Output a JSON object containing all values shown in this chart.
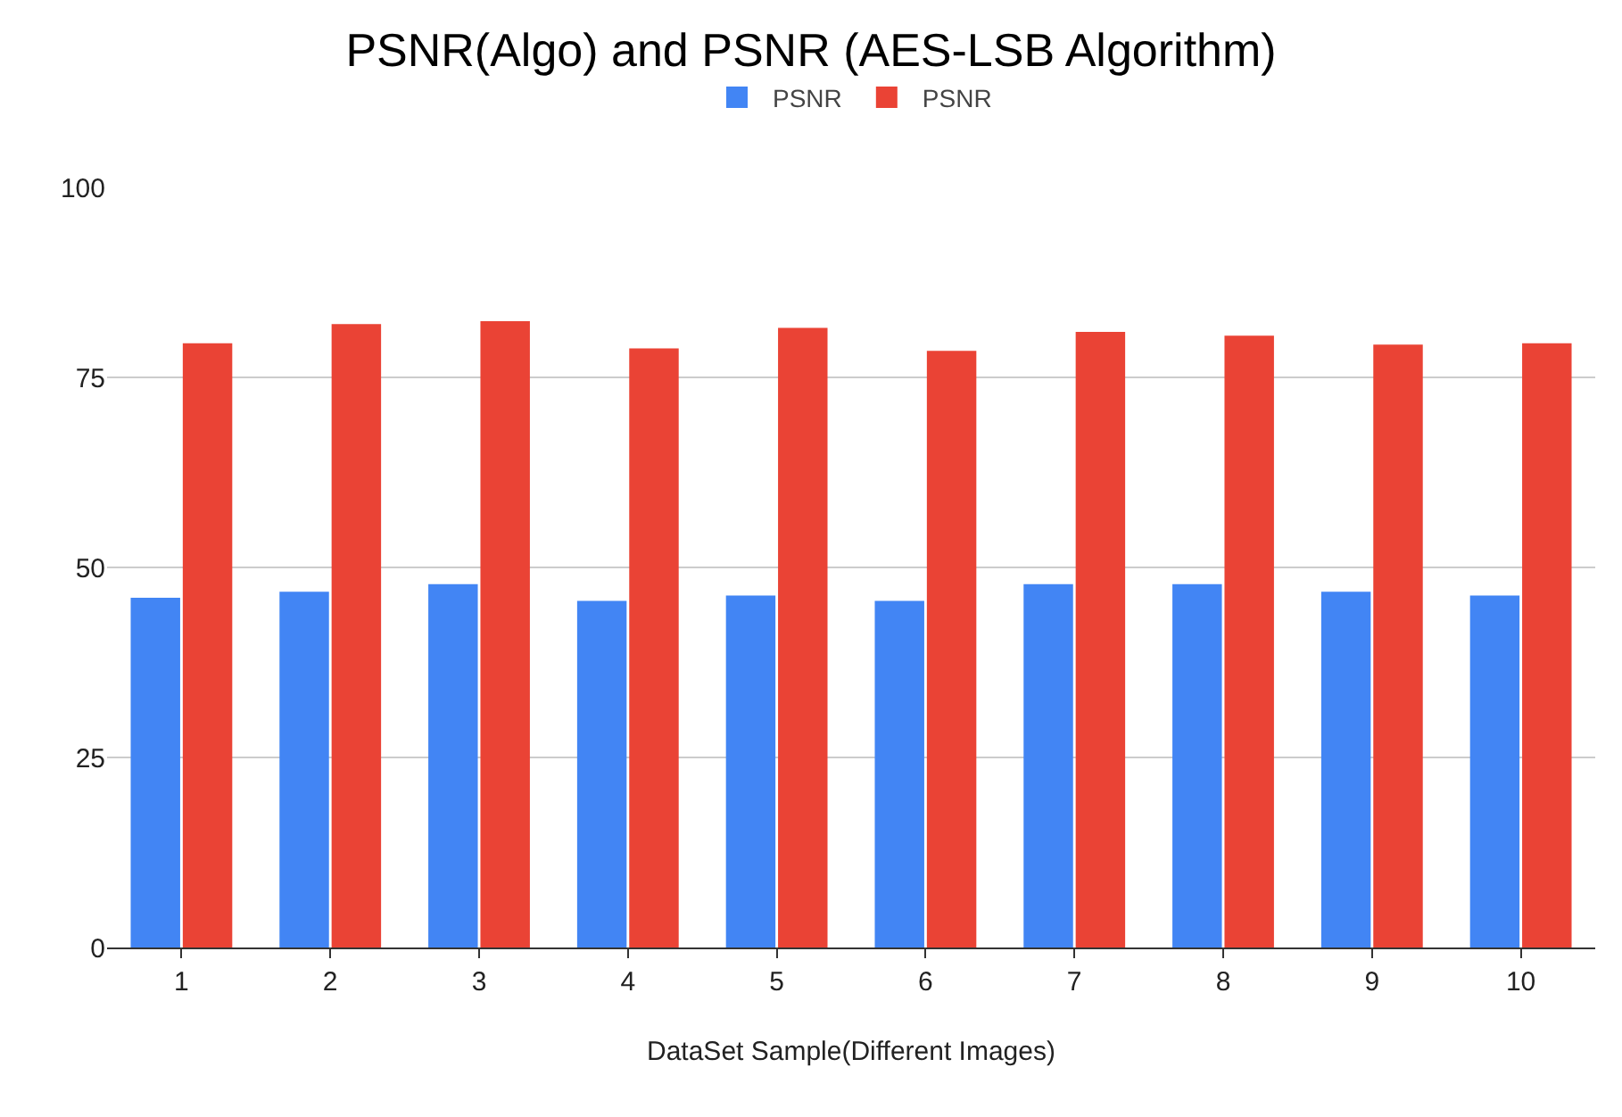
{
  "chart_data": {
    "type": "bar",
    "title": "PSNR(Algo) and PSNR (AES-LSB Algorithm)",
    "xlabel": "DataSet Sample(Different Images)",
    "categories": [
      "1",
      "2",
      "3",
      "4",
      "5",
      "6",
      "7",
      "8",
      "9",
      "10"
    ],
    "series": [
      {
        "name": "PSNR",
        "color": "#4285f4",
        "values": [
          46,
          46.8,
          47.8,
          45.6,
          46.3,
          45.6,
          47.8,
          47.8,
          46.8,
          46.3
        ]
      },
      {
        "name": "PSNR",
        "color": "#ea4335",
        "values": [
          79.5,
          82,
          82.4,
          78.8,
          81.5,
          78.5,
          81,
          80.5,
          79.3,
          79.5
        ]
      }
    ],
    "ylim": [
      0,
      100
    ],
    "yticks": [
      0,
      25,
      50,
      75,
      100
    ],
    "grid": "y",
    "legend": "top"
  }
}
